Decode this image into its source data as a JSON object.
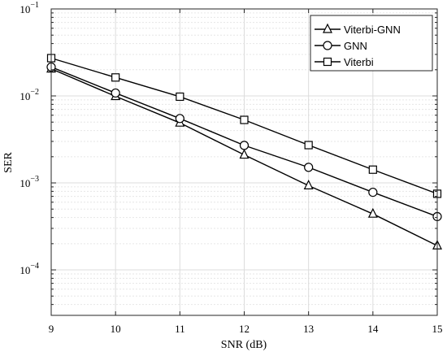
{
  "chart_data": {
    "type": "line",
    "xlabel": "SNR (dB)",
    "ylabel": "SER",
    "xlim": [
      9,
      15
    ],
    "ylim": [
      3e-05,
      0.1
    ],
    "yscale": "log",
    "grid": true,
    "legend_position": "top-right",
    "x": [
      9,
      10,
      11,
      12,
      13,
      14,
      15
    ],
    "x_tick_labels": [
      "9",
      "10",
      "11",
      "12",
      "13",
      "14",
      "15"
    ],
    "y_ticks": [
      {
        "value": 0.1,
        "base": "10",
        "exp": "−1"
      },
      {
        "value": 0.01,
        "base": "10",
        "exp": "−2"
      },
      {
        "value": 0.001,
        "base": "10",
        "exp": "−3"
      },
      {
        "value": 0.0001,
        "base": "10",
        "exp": "−4"
      }
    ],
    "series": [
      {
        "name": "Viterbi-GNN",
        "marker": "triangle",
        "color": "#000000",
        "values": [
          0.0205,
          0.0099,
          0.0049,
          0.0021,
          0.00093,
          0.00044,
          0.00019
        ]
      },
      {
        "name": "GNN",
        "marker": "circle",
        "color": "#000000",
        "values": [
          0.0215,
          0.0108,
          0.0055,
          0.0027,
          0.00151,
          0.00078,
          0.00041
        ]
      },
      {
        "name": "Viterbi",
        "marker": "square",
        "color": "#000000",
        "values": [
          0.0272,
          0.0163,
          0.0098,
          0.0053,
          0.00272,
          0.00142,
          0.00075
        ]
      }
    ]
  }
}
